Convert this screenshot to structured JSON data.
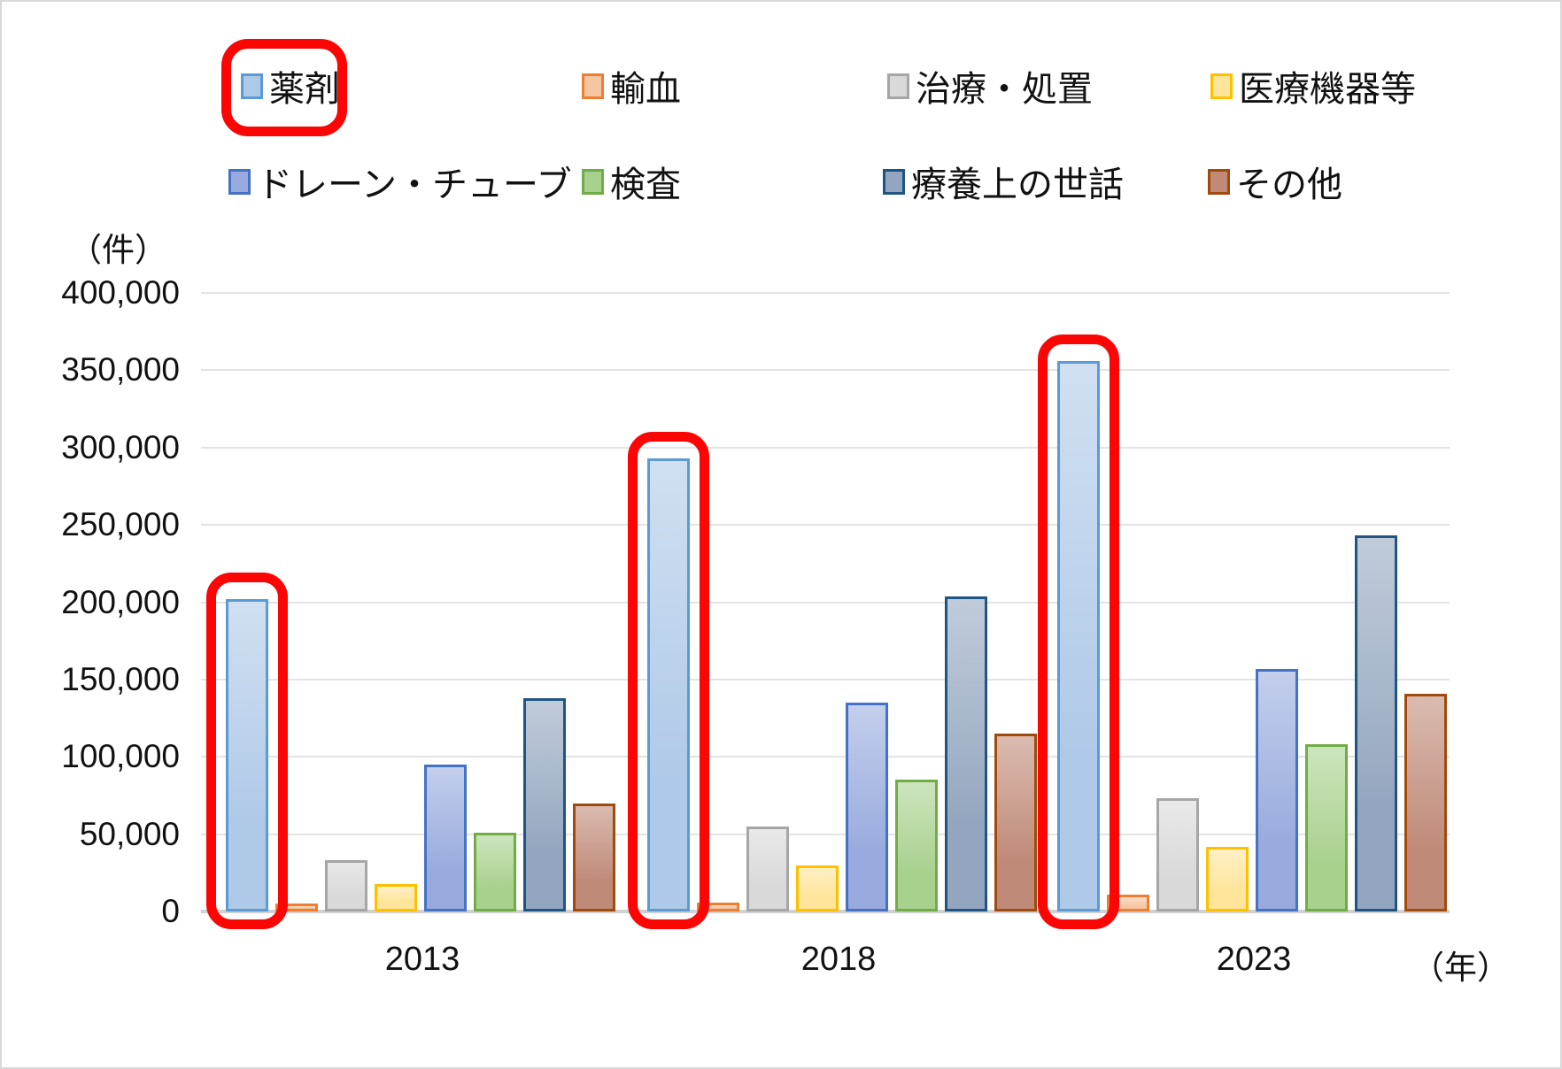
{
  "axes": {
    "y_unit_label": "（件）",
    "x_unit_label": "（年）",
    "y_tick_labels": [
      "400,000",
      "350,000",
      "300,000",
      "250,000",
      "200,000",
      "150,000",
      "100,000",
      "50,000",
      "0"
    ],
    "x_tick_labels": [
      "2013",
      "2018",
      "2023"
    ]
  },
  "chart_data": {
    "type": "bar",
    "title": "",
    "xlabel": "（年）",
    "ylabel": "（件）",
    "categories": [
      "2013",
      "2018",
      "2023"
    ],
    "series": [
      {
        "name": "薬剤",
        "values": [
          202000,
          293000,
          356000
        ],
        "fill": "#AFC9E8",
        "border": "#5B9BD5"
      },
      {
        "name": "輸血",
        "values": [
          5000,
          6000,
          11000
        ],
        "fill": "#F6C6A2",
        "border": "#ED7D31"
      },
      {
        "name": "治療・処置",
        "values": [
          33000,
          55000,
          73000
        ],
        "fill": "#D9D9D9",
        "border": "#A6A6A6"
      },
      {
        "name": "医療機器等",
        "values": [
          18000,
          30000,
          42000
        ],
        "fill": "#FFE59B",
        "border": "#FFC000"
      },
      {
        "name": "ドレーン・チューブ",
        "values": [
          95000,
          135000,
          157000
        ],
        "fill": "#99ABDE",
        "border": "#4472C4"
      },
      {
        "name": "検査",
        "values": [
          51000,
          85000,
          108000
        ],
        "fill": "#A9D18E",
        "border": "#70AD47"
      },
      {
        "name": "療養上の世話",
        "values": [
          138000,
          204000,
          243000
        ],
        "fill": "#94A6BF",
        "border": "#1F5582"
      },
      {
        "name": "その他",
        "values": [
          70000,
          115000,
          141000
        ],
        "fill": "#C08A78",
        "border": "#A04B0E"
      }
    ],
    "ylim": [
      0,
      400000
    ],
    "y_tick_step": 50000,
    "grid": true,
    "legend_position": "top",
    "annotations": {
      "highlighted_series": "薬剤",
      "highlight_color": "#FF0000",
      "targets": [
        "legend-entry",
        "bar-2013",
        "bar-2018",
        "bar-2023"
      ]
    }
  },
  "legend": {
    "rows": [
      {
        "labels": [
          "薬剤",
          "輸血",
          "治療・処置",
          "医療機器等"
        ]
      },
      {
        "labels": [
          "ドレーン・チューブ",
          "検査",
          "療養上の世話",
          "その他"
        ]
      }
    ]
  }
}
